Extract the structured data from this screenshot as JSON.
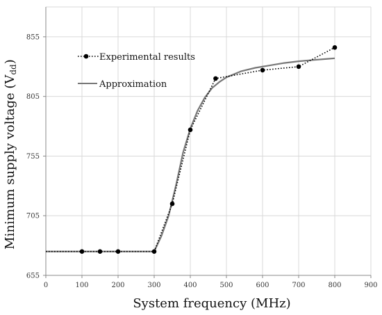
{
  "chart_data": {
    "type": "line",
    "xlabel": "System frequency (MHz)",
    "ylabel_main": "Minimum supply voltage (V",
    "ylabel_sub": "dd",
    "ylabel_close": ")",
    "xlim": [
      0,
      900
    ],
    "ylim": [
      655,
      880
    ],
    "x_ticks": [
      0,
      100,
      200,
      300,
      400,
      500,
      600,
      700,
      800,
      900
    ],
    "x_tick_labels": [
      "0",
      "100",
      "200",
      "300",
      "400",
      "500",
      "600",
      "700",
      "800",
      "900"
    ],
    "y_ticks": [
      655,
      705,
      755,
      805,
      855
    ],
    "y_tick_labels": [
      "655",
      "705",
      "755",
      "805",
      "855"
    ],
    "grid": true,
    "legend_position": "top-left",
    "series": [
      {
        "name": "Experimental results",
        "style": "dotted-markers",
        "color": "#000000",
        "x": [
          0,
          100,
          150,
          200,
          300,
          350,
          400,
          470,
          600,
          700,
          800
        ],
        "y": [
          675,
          675,
          675,
          675,
          675,
          715,
          777,
          820,
          827,
          830,
          846
        ]
      },
      {
        "name": "Approximation",
        "style": "solid",
        "color": "#777777",
        "x": [
          0,
          300,
          320,
          340,
          360,
          380,
          400,
          420,
          440,
          460,
          480,
          500,
          540,
          580,
          620,
          660,
          700,
          740,
          780,
          800
        ],
        "y": [
          675,
          675,
          688,
          705,
          730,
          758,
          778,
          793,
          804,
          812,
          817,
          821,
          826,
          829,
          831,
          833,
          834.5,
          835.5,
          836.5,
          837
        ]
      }
    ]
  }
}
